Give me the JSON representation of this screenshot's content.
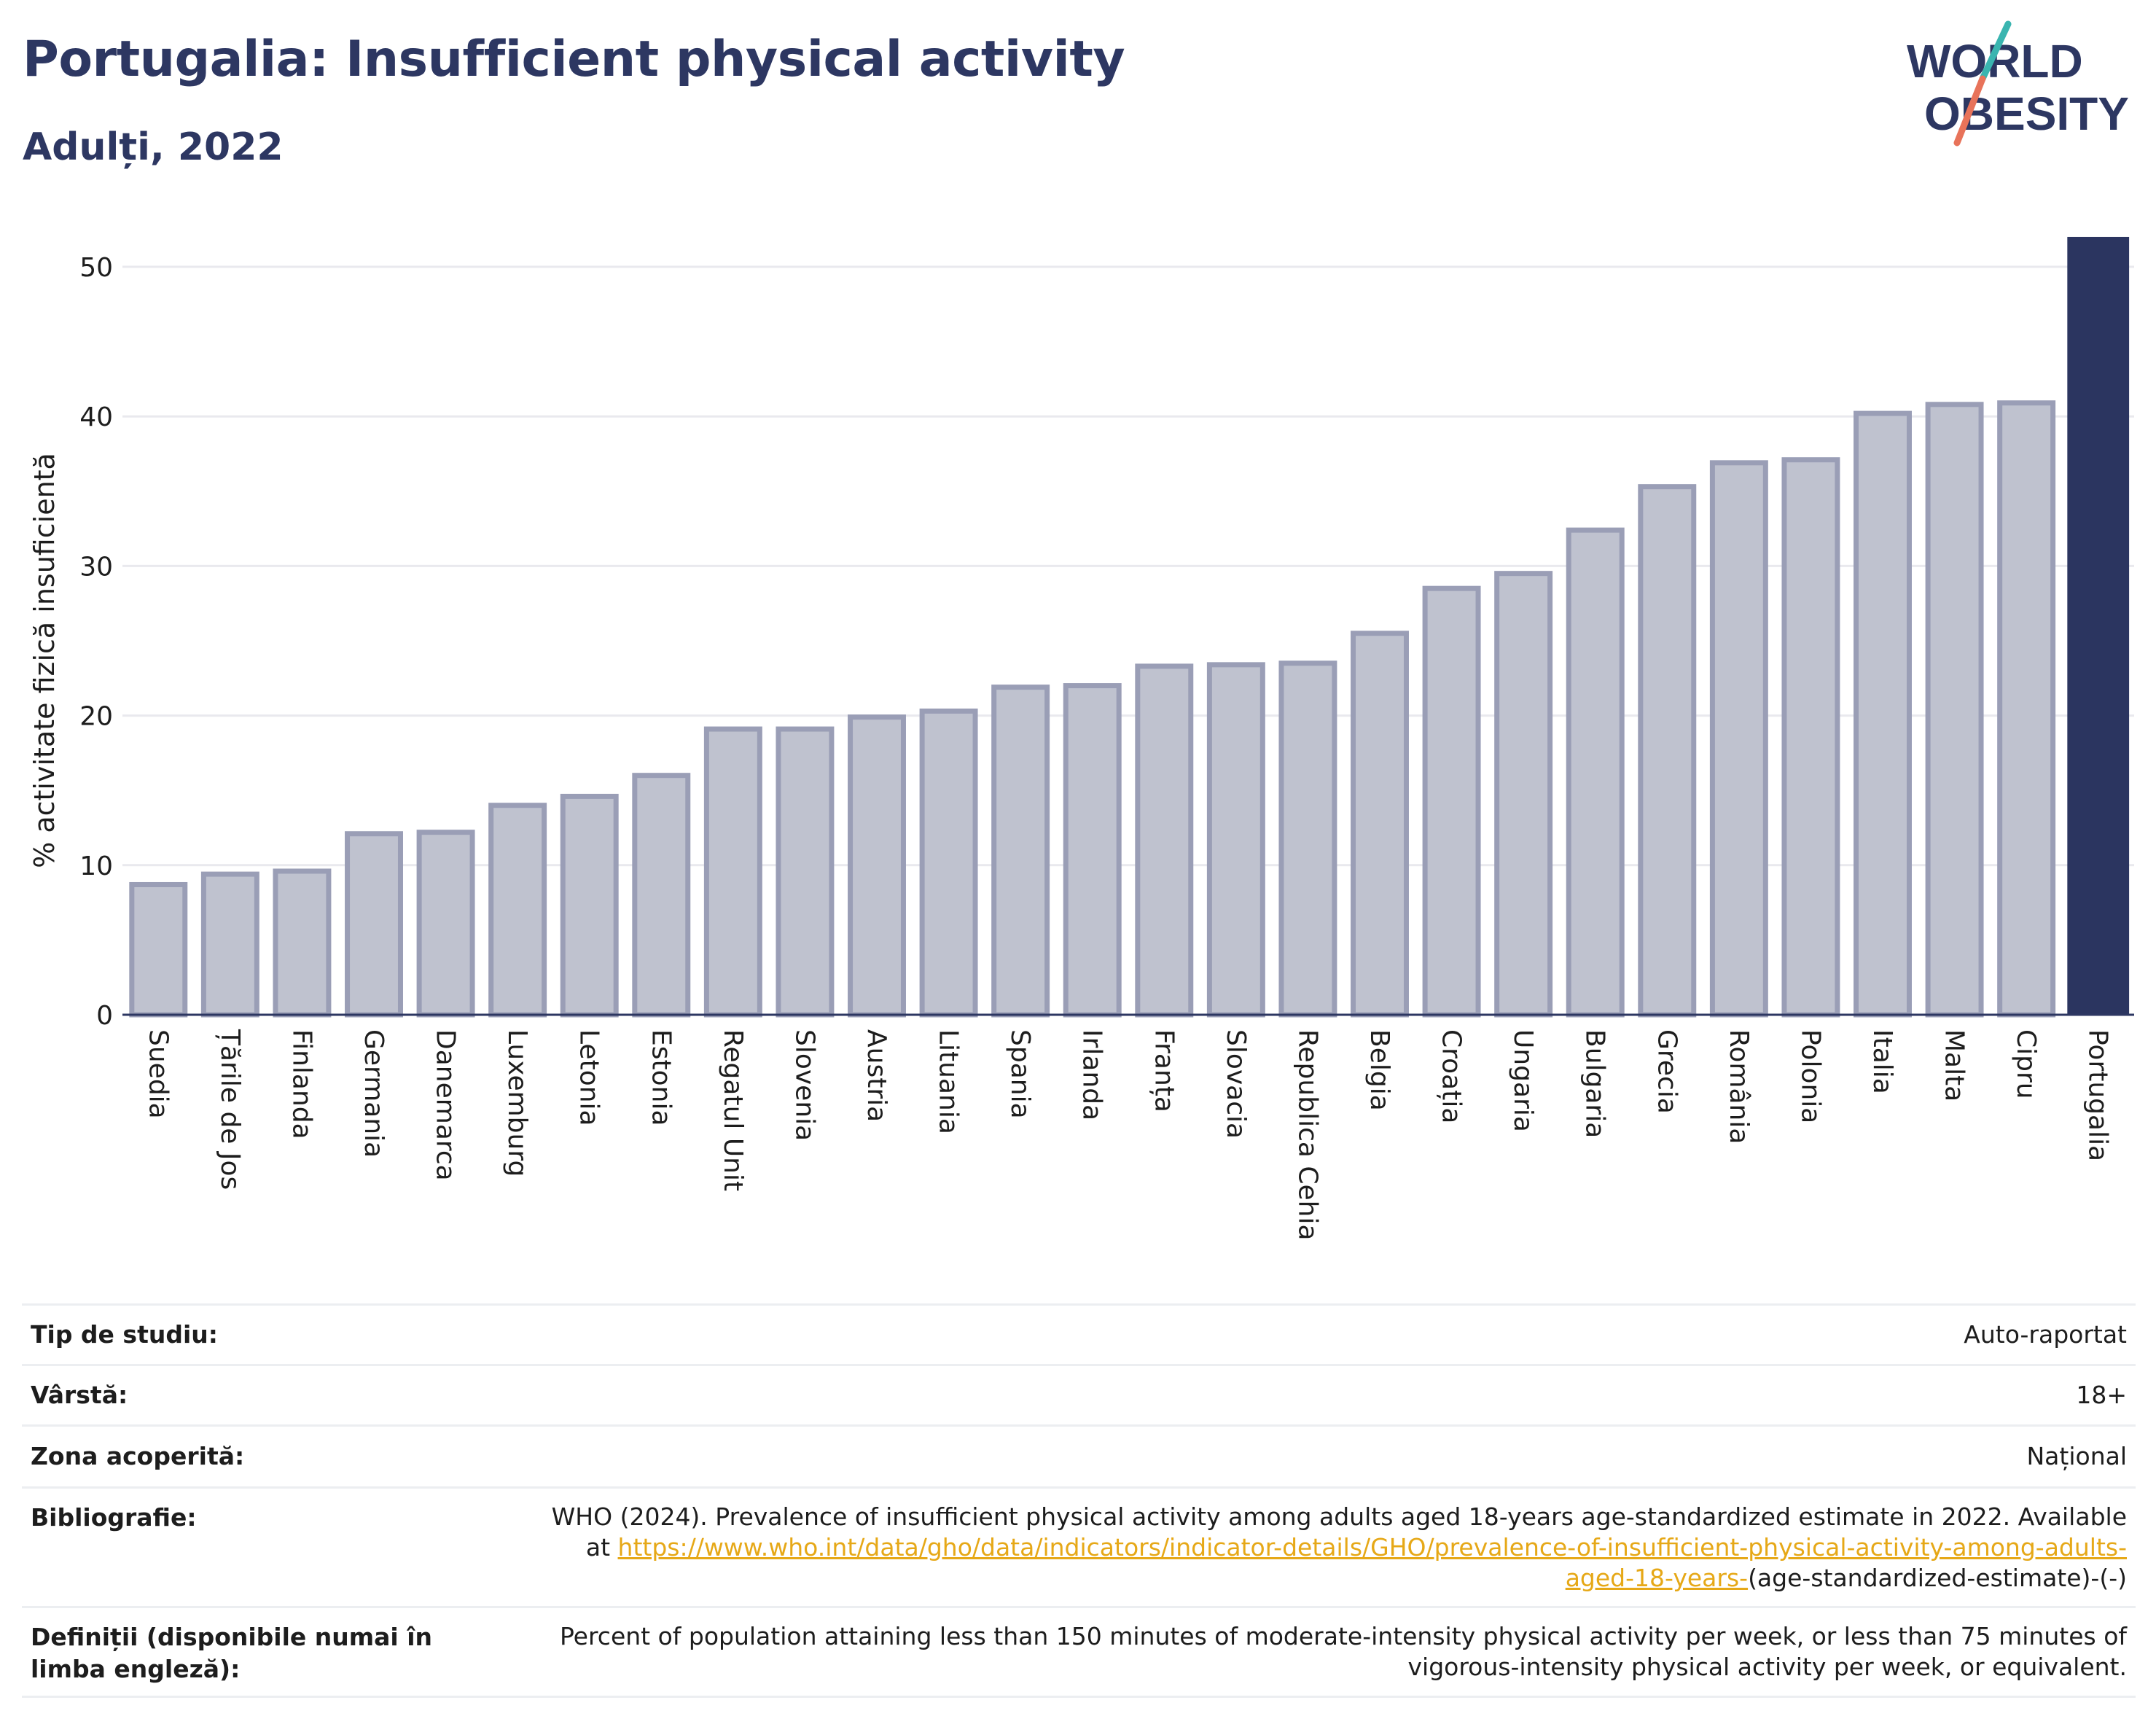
{
  "header": {
    "title": "Portugalia: Insufficient physical activity",
    "subtitle": "Adulți, 2022",
    "logo_line1": "WORLD",
    "logo_line2": "OBESITY"
  },
  "colors": {
    "highlight_bar": "#2b3560",
    "other_bars": "#bfc2cf",
    "other_bar_border": "#9a9eb6",
    "title": "#2d3762",
    "link": "#e6a817",
    "logo_slash_top": "#3ab5b0",
    "logo_slash_bottom": "#e8735a"
  },
  "chart_data": {
    "type": "bar",
    "ylabel": "% activitate fizică insuficientă",
    "xlabel": "",
    "ylim": [
      0,
      52
    ],
    "yticks": [
      0,
      10,
      20,
      30,
      40,
      50
    ],
    "grid": true,
    "highlight": "Portugalia",
    "categories": [
      "Suedia",
      "Țările de Jos",
      "Finlanda",
      "Germania",
      "Danemarca",
      "Luxemburg",
      "Letonia",
      "Estonia",
      "Regatul Unit",
      "Slovenia",
      "Austria",
      "Lituania",
      "Spania",
      "Irlanda",
      "Franța",
      "Slovacia",
      "Republica Cehia",
      "Belgia",
      "Croația",
      "Ungaria",
      "Bulgaria",
      "Grecia",
      "România",
      "Polonia",
      "Italia",
      "Malta",
      "Cipru",
      "Portugalia"
    ],
    "values": [
      8.7,
      9.4,
      9.6,
      12.1,
      12.2,
      14.0,
      14.6,
      16.0,
      19.1,
      19.1,
      19.9,
      20.3,
      21.9,
      22.0,
      23.3,
      23.4,
      23.5,
      25.5,
      28.5,
      29.5,
      32.4,
      35.3,
      36.9,
      37.1,
      40.2,
      40.8,
      40.9,
      52.0
    ]
  },
  "info": {
    "study_type_label": "Tip de studiu:",
    "study_type_value": "Auto-raportat",
    "age_label": "Vârstă:",
    "age_value": "18+",
    "area_label": "Zona acoperită:",
    "area_value": "Național",
    "bibliography_label": "Bibliografie:",
    "bibliography_text": "WHO (2024). Prevalence of insufficient physical activity among adults aged 18-years age-standardized estimate in 2022. Available at",
    "bibliography_link": "https://www.who.int/data/gho/data/indicators/indicator-details/GHO/prevalence-of-insufficient-physical-activity-among-adults-aged-18-years-",
    "bibliography_tail": "(age-standardized-estimate)-(-)",
    "definitions_label": "Definiții (disponibile numai în limba engleză):",
    "definitions_value": "Percent of population attaining less than 150 minutes of moderate-intensity physical activity per week, or less than 75 minutes of vigorous-intensity physical activity per week, or equivalent."
  }
}
